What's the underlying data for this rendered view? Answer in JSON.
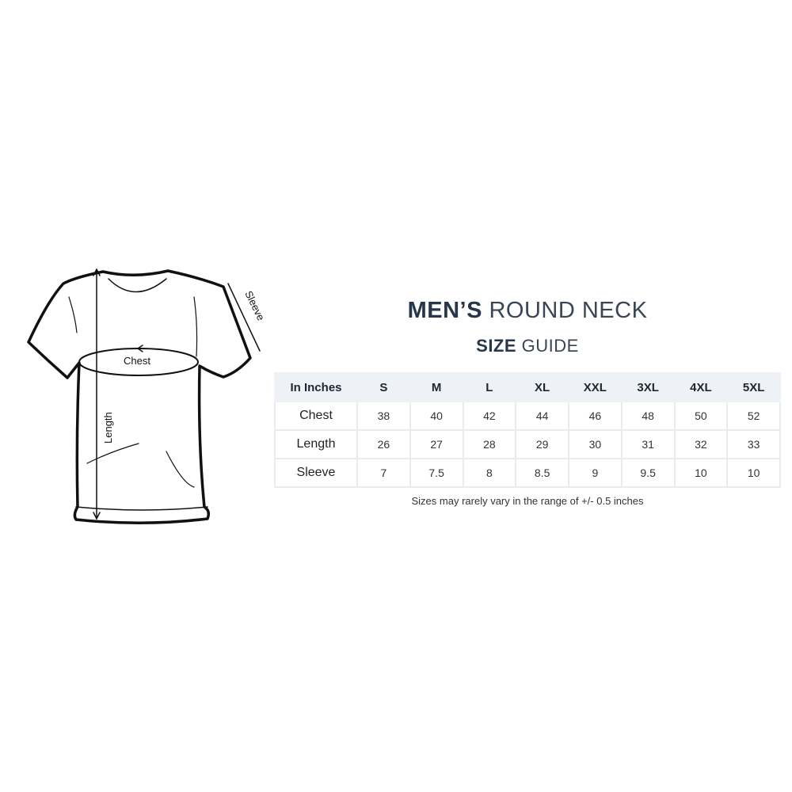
{
  "title": {
    "bold": "MEN’S",
    "light": "ROUND NECK"
  },
  "subtitle": {
    "bold": "SIZE",
    "light": "GUIDE"
  },
  "diagram": {
    "chest_label": "Chest",
    "length_label": "Length",
    "sleeve_label": "Sleeve"
  },
  "table": {
    "unit_header": "In Inches",
    "sizes": [
      "S",
      "M",
      "L",
      "XL",
      "XXL",
      "3XL",
      "4XL",
      "5XL"
    ],
    "rows": [
      {
        "label": "Chest",
        "values": [
          "38",
          "40",
          "42",
          "44",
          "46",
          "48",
          "50",
          "52"
        ]
      },
      {
        "label": "Length",
        "values": [
          "26",
          "27",
          "28",
          "29",
          "30",
          "31",
          "32",
          "33"
        ]
      },
      {
        "label": "Sleeve",
        "values": [
          "7",
          "7.5",
          "8",
          "8.5",
          "9",
          "9.5",
          "10",
          "10"
        ]
      }
    ]
  },
  "note": "Sizes may rarely vary in the range of +/- 0.5 inches",
  "colors": {
    "title": "#27364a",
    "header_bg": "#eef1f5"
  }
}
